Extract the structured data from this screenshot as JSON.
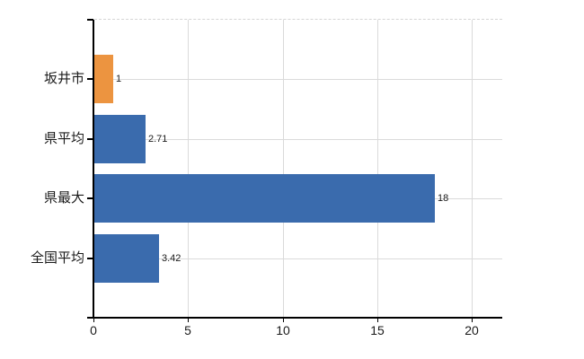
{
  "chart_data": {
    "type": "bar",
    "orientation": "horizontal",
    "title": "",
    "categories": [
      "坂井市",
      "県平均",
      "県最大",
      "全国平均"
    ],
    "values": [
      1,
      2.71,
      18,
      3.42
    ],
    "value_labels": [
      "1",
      "2.71",
      "18",
      "3.42"
    ],
    "bar_colors": [
      "#EC9440",
      "#3A6BAD",
      "#3A6BAD",
      "#3A6BAD"
    ],
    "x_ticks": [
      0,
      5,
      10,
      15,
      20
    ],
    "x_tick_labels": [
      "0",
      "5",
      "10",
      "15",
      "20"
    ],
    "xlim": [
      0,
      21.6
    ],
    "xlabel": "",
    "ylabel": "",
    "grid": true,
    "legend": "none",
    "colors": {
      "highlight_bar": "#EC9440",
      "default_bar": "#3A6BAD",
      "grid_line": "#DADADA",
      "axis_line": "#000000",
      "label_text": "#1A1A1A",
      "background": "#FFFFFF"
    }
  }
}
